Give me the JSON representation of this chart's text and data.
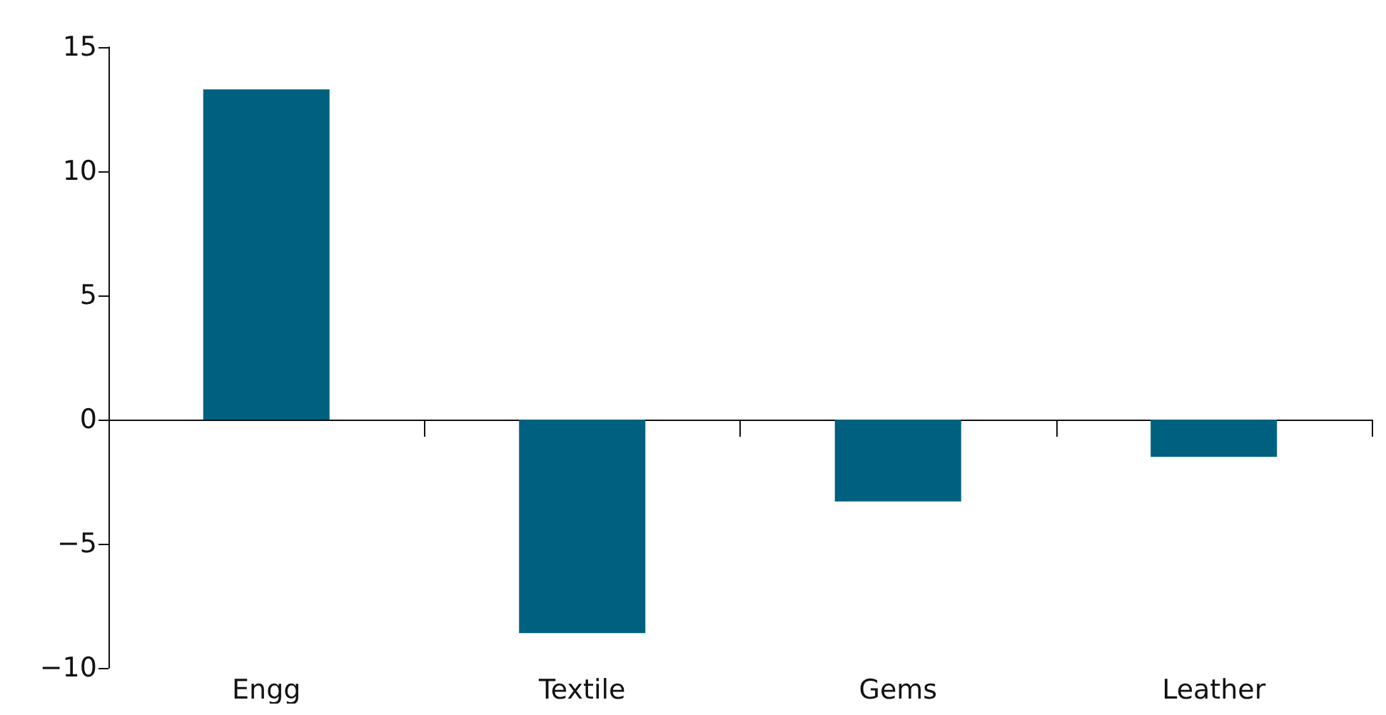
{
  "chart_data": {
    "type": "bar",
    "categories": [
      "Engg",
      "Textile",
      "Gems",
      "Leather"
    ],
    "values": [
      13.3,
      -8.6,
      -3.3,
      -1.5
    ],
    "color": "#006080",
    "ylim": [
      -10,
      15
    ],
    "yticks": [
      {
        "value": -10,
        "label": "−10"
      },
      {
        "value": -5,
        "label": "−5"
      },
      0,
      5,
      10,
      15
    ]
  }
}
